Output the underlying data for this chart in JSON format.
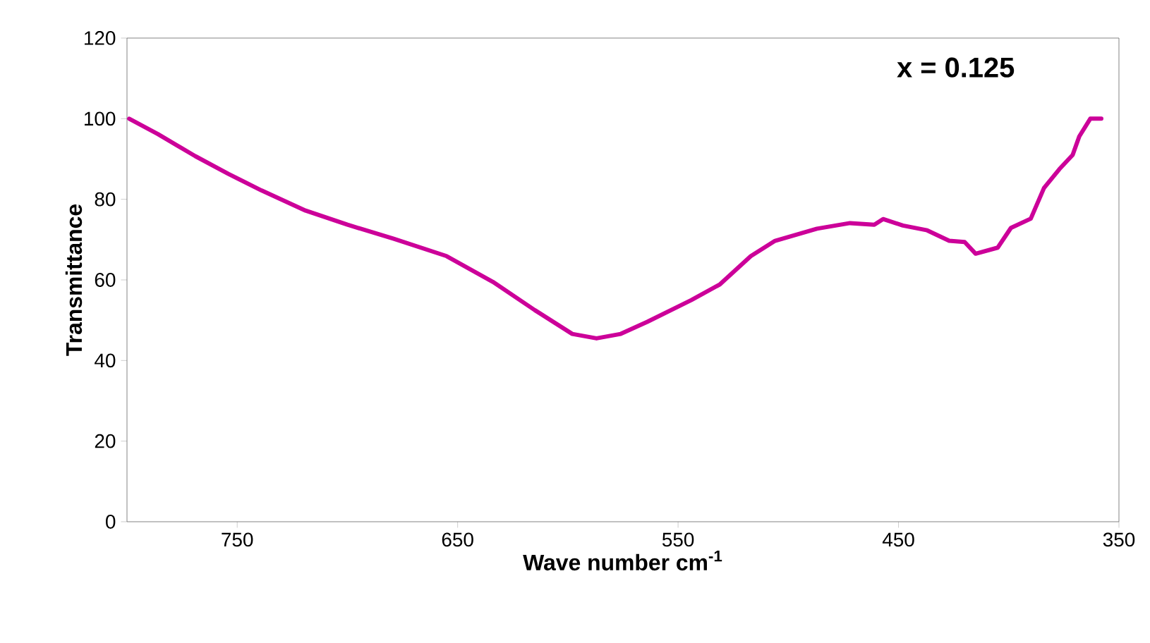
{
  "chart_data": {
    "type": "line",
    "xlabel": "Wave number cm$^{-1}$",
    "ylabel": "Transmittance",
    "annotations": [
      "x = 0.125"
    ],
    "xlim": [
      800,
      350
    ],
    "ylim": [
      0,
      120
    ],
    "xticks": [
      750,
      650,
      550,
      450,
      350
    ],
    "yticks": [
      0,
      20,
      40,
      60,
      80,
      100,
      120
    ],
    "marker": "none",
    "line_style": "solid",
    "series": [
      {
        "color": "#cc0099",
        "x": [
          799,
          786,
          769,
          754,
          739,
          719,
          700,
          679,
          655,
          634,
          615,
          598,
          587,
          576,
          564,
          544,
          531,
          517,
          506,
          487,
          472,
          461,
          457,
          448,
          437,
          427,
          420,
          415,
          405,
          399,
          390,
          384,
          377,
          371,
          368,
          363,
          358
        ],
        "values": [
          100,
          96.2,
          90.7,
          86.3,
          82.2,
          77.2,
          73.7,
          70.2,
          65.9,
          59.5,
          52.5,
          46.6,
          45.5,
          46.6,
          49.6,
          55,
          58.9,
          65.9,
          69.7,
          72.7,
          74.1,
          73.7,
          75.1,
          73.5,
          72.3,
          69.7,
          69.4,
          66.5,
          68,
          72.9,
          75.2,
          82.8,
          87.5,
          91,
          95.6,
          100,
          100
        ]
      }
    ]
  }
}
